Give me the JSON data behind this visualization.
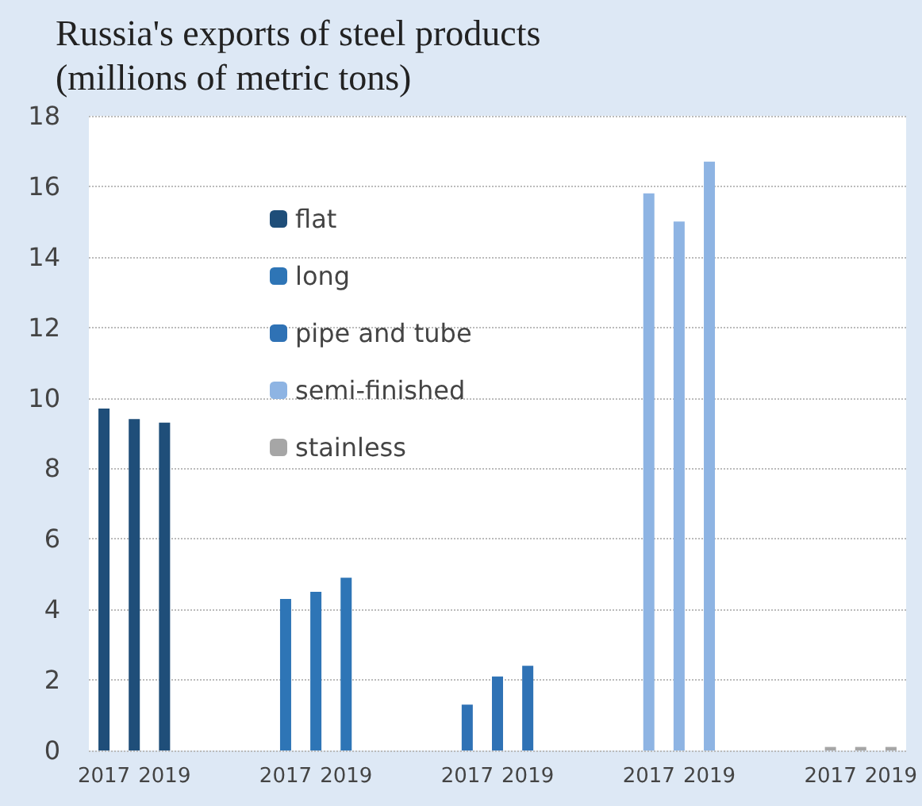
{
  "chart_data": {
    "type": "bar",
    "title": "Russia's exports of steel products\n(millions of metric tons)",
    "categories": [
      "2017",
      null,
      "2019",
      null,
      null,
      null,
      "2017",
      null,
      "2019",
      null,
      null,
      null,
      "2017",
      null,
      "2019",
      null,
      null,
      null,
      "2017",
      null,
      "2019",
      null,
      null,
      null,
      "2017",
      null,
      "2019"
    ],
    "series": [
      {
        "name": "flat",
        "color": "#1f4e79",
        "values": [
          9.7,
          9.4,
          9.3,
          null,
          null,
          null,
          null,
          null,
          null,
          null,
          null,
          null,
          null,
          null,
          null,
          null,
          null,
          null,
          null,
          null,
          null,
          null,
          null,
          null,
          null,
          null,
          null
        ]
      },
      {
        "name": "long",
        "color": "#2e75b6",
        "values": [
          null,
          null,
          null,
          null,
          null,
          null,
          4.3,
          4.5,
          4.9,
          null,
          null,
          null,
          null,
          null,
          null,
          null,
          null,
          null,
          null,
          null,
          null,
          null,
          null,
          null,
          null,
          null,
          null
        ]
      },
      {
        "name": "pipe and tube",
        "color": "#2f72b5",
        "values": [
          null,
          null,
          null,
          null,
          null,
          null,
          null,
          null,
          null,
          null,
          null,
          null,
          1.3,
          2.1,
          2.4,
          null,
          null,
          null,
          null,
          null,
          null,
          null,
          null,
          null,
          null,
          null,
          null
        ]
      },
      {
        "name": "semi-finished",
        "color": "#8eb4e3",
        "values": [
          null,
          null,
          null,
          null,
          null,
          null,
          null,
          null,
          null,
          null,
          null,
          null,
          null,
          null,
          null,
          null,
          null,
          null,
          15.8,
          15.0,
          16.7,
          null,
          null,
          null,
          null,
          null,
          null
        ]
      },
      {
        "name": "stainless",
        "color": "#a6a6a6",
        "values": [
          null,
          null,
          null,
          null,
          null,
          null,
          null,
          null,
          null,
          null,
          null,
          null,
          null,
          null,
          null,
          null,
          null,
          null,
          null,
          null,
          null,
          null,
          null,
          null,
          0.1,
          0.1,
          0.1
        ]
      }
    ],
    "ylim": [
      0,
      18
    ],
    "yticks": [
      0,
      2,
      4,
      6,
      8,
      10,
      12,
      14,
      16,
      18
    ],
    "grid": "y",
    "legend": "top"
  }
}
